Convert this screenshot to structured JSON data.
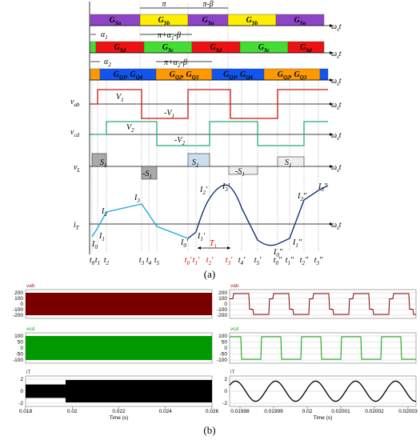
{
  "panel_a": {
    "caption": "(a)",
    "axis": [
      "ω",
      "s",
      "t"
    ],
    "angles": {
      "pi": "π",
      "pi_beta": "π-β",
      "alpha1": [
        "α",
        "1"
      ],
      "pi_alpha1": [
        "π+α",
        "1",
        "-β"
      ],
      "alpha2": [
        "α",
        "2"
      ],
      "pi_alpha2": [
        "π+α",
        "2",
        "-β"
      ]
    },
    "bar1": [
      [
        "G",
        "Sa"
      ],
      [
        "G",
        "Sb"
      ],
      [
        "G",
        "Sa"
      ],
      [
        "G",
        "Sb"
      ],
      [
        "G",
        "Sa"
      ]
    ],
    "bar2": [
      [
        "G",
        "Sd"
      ],
      [
        "G",
        "Sc"
      ],
      [
        "G",
        "Sd"
      ],
      [
        "G",
        "Sc"
      ],
      [
        "G",
        "Sd"
      ]
    ],
    "bar3": [
      [
        "G",
        "Q1",
        ", G",
        "Q4"
      ],
      [
        "G",
        "Q2",
        ", G",
        "Q3"
      ],
      [
        "G",
        "Q1",
        ", G",
        "Q4"
      ],
      [
        "G",
        "Q2",
        ", G",
        "Q3"
      ]
    ],
    "signals": {
      "vab": [
        "v",
        "ab"
      ],
      "vcd": [
        "v",
        "cd"
      ],
      "vL": [
        "v",
        "L"
      ],
      "iT": [
        "i",
        "T"
      ]
    },
    "levels": {
      "V1": [
        "V",
        "1"
      ],
      "mV1": [
        "-V",
        "1"
      ],
      "V2": [
        "V",
        "2"
      ],
      "mV2": [
        "-V",
        "2"
      ],
      "S1": [
        "S",
        "1"
      ],
      "mS1": [
        "-S",
        "1"
      ],
      "S1p": [
        "S",
        "1"
      ],
      "mS1p": [
        "-S",
        "1"
      ],
      "S1pp": [
        "S",
        "1"
      ]
    },
    "currents": [
      [
        "I",
        "0"
      ],
      [
        "I",
        "1"
      ],
      [
        "I",
        "2"
      ],
      [
        "I",
        "3"
      ],
      [
        "I",
        "0",
        "'"
      ],
      [
        "I",
        "1",
        "'"
      ],
      [
        "I",
        "2",
        "'"
      ],
      [
        "I",
        "3",
        "'"
      ],
      [
        "I",
        "0",
        "''"
      ],
      [
        "I",
        "1",
        "''"
      ],
      [
        "I",
        "2",
        "''"
      ],
      [
        "I",
        "3",
        "''"
      ]
    ],
    "period": [
      "T",
      "1"
    ],
    "times": [
      [
        "t",
        "0"
      ],
      [
        "t",
        "1"
      ],
      [
        "t",
        "2"
      ],
      [
        "t",
        "3"
      ],
      [
        "t",
        "4"
      ],
      [
        "t",
        "5"
      ],
      [
        "t",
        "0",
        "'"
      ],
      [
        "t",
        "1",
        "'"
      ],
      [
        "t",
        "2",
        "'"
      ],
      [
        "t",
        "3",
        "'"
      ],
      [
        "t",
        "4",
        "'"
      ],
      [
        "t",
        "5",
        "'"
      ],
      [
        "t",
        "0",
        "''"
      ],
      [
        "t",
        "1",
        "''"
      ],
      [
        "t",
        "2",
        "''"
      ],
      [
        "t",
        "3",
        "''"
      ]
    ]
  },
  "panel_b": {
    "caption": "(b)",
    "titles": [
      "vab",
      "vcd",
      "iT"
    ],
    "yticks": [
      [
        200,
        100,
        0,
        -100,
        -200
      ],
      [
        100,
        50,
        0,
        -50,
        -100
      ],
      [
        2,
        0,
        -2
      ]
    ],
    "xticks_left": [
      0.018,
      0.02,
      0.022,
      0.024,
      0.026
    ],
    "xticks_right": [
      0.01998,
      0.01999,
      0.02,
      0.02001,
      0.02002,
      0.02003
    ],
    "xlabel": "Time (s)"
  }
}
